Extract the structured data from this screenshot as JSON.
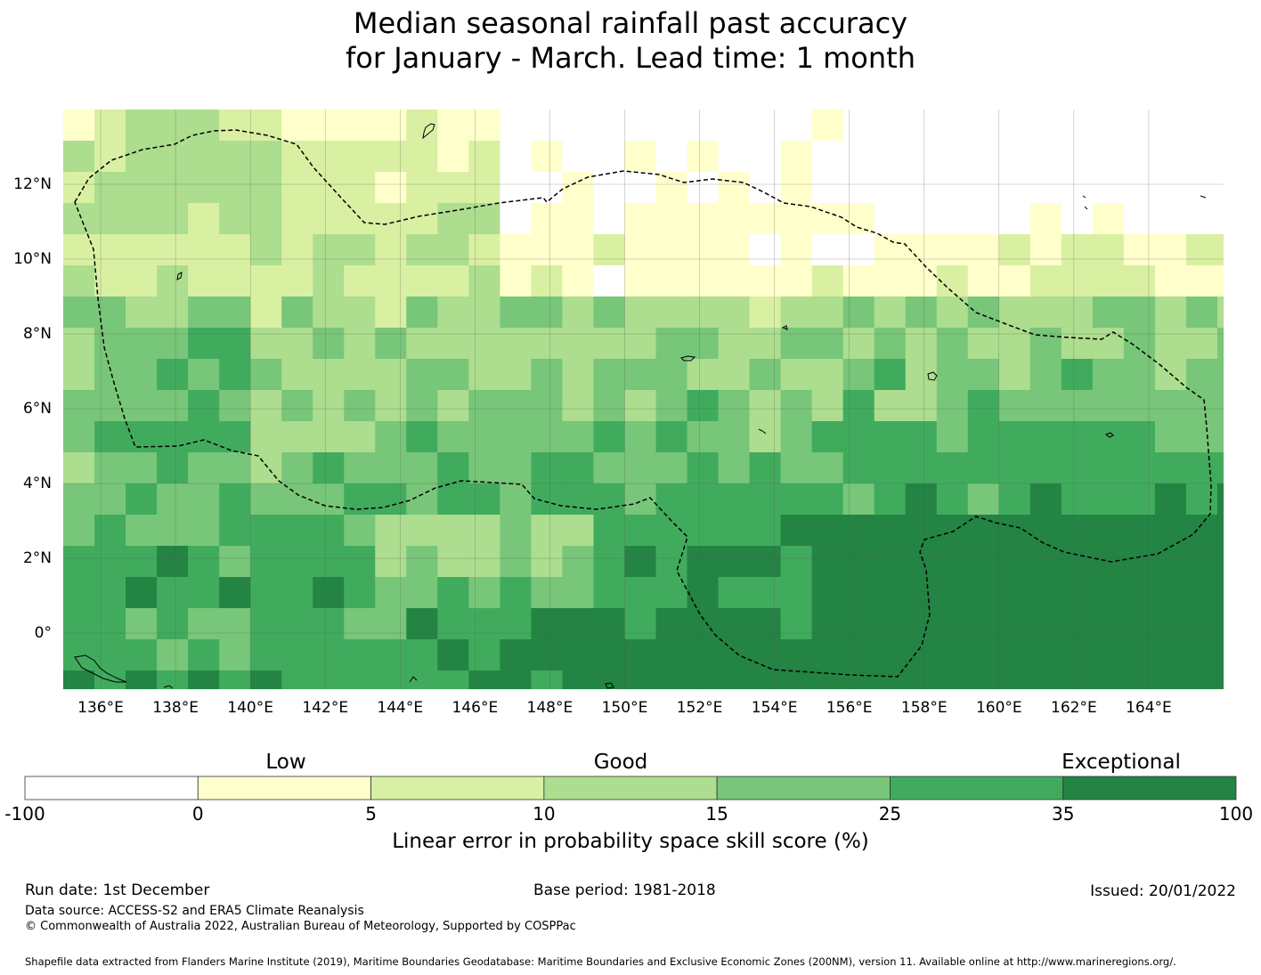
{
  "title": {
    "line1": "Median seasonal rainfall past accuracy",
    "line2": "for January - March. Lead time: 1 month"
  },
  "map": {
    "lon_range": [
      135,
      166
    ],
    "lat_range": [
      -1.5,
      14
    ],
    "x_ticks": [
      "136°E",
      "138°E",
      "140°E",
      "142°E",
      "144°E",
      "146°E",
      "148°E",
      "150°E",
      "152°E",
      "154°E",
      "156°E",
      "158°E",
      "160°E",
      "162°E",
      "164°E"
    ],
    "x_tick_values": [
      136,
      138,
      140,
      142,
      144,
      146,
      148,
      150,
      152,
      154,
      156,
      158,
      160,
      162,
      164
    ],
    "y_ticks": [
      "12°N",
      "10°N",
      "8°N",
      "6°N",
      "4°N",
      "2°N",
      "0°"
    ],
    "y_tick_values": [
      12,
      10,
      8,
      6,
      4,
      2,
      0
    ],
    "eez_boundary_name": "Federated States of Micronesia EEZ",
    "islands_name": "coastlines"
  },
  "legend": {
    "categories": [
      "Low",
      "Good",
      "Exceptional"
    ],
    "bins": [
      {
        "from": "-100",
        "to": "0",
        "color": "#ffffff"
      },
      {
        "from": "0",
        "to": "5",
        "color": "#ffffcc"
      },
      {
        "from": "5",
        "to": "10",
        "color": "#d9f0a3"
      },
      {
        "from": "10",
        "to": "15",
        "color": "#addd8e"
      },
      {
        "from": "15",
        "to": "25",
        "color": "#78c679"
      },
      {
        "from": "25",
        "to": "35",
        "color": "#41ab5d"
      },
      {
        "from": "35",
        "to": "100",
        "color": "#238443"
      }
    ],
    "tick_labels": [
      "-100",
      "0",
      "5",
      "10",
      "15",
      "25",
      "35",
      "100"
    ],
    "label": "Linear error in probability space skill score (%)"
  },
  "footer": {
    "run_date": "Run date: 1st December",
    "base_period": "Base period: 1981-2018",
    "issued": "Issued: 20/01/2022",
    "data_source": "Data source: ACCESS-S2 and ERA5 Climate Reanalysis",
    "copyright": "© Commonwealth of Australia 2022, Australian Bureau of Meteorology, Supported by COSPPac",
    "shapefile": "Shapefile data extracted from Flanders Marine Institute (2019), Maritime Boundaries Geodatabase: Maritime Boundaries and Exclusive Economic Zones (200NM), version 11. Available online at http://www.marineregions.org/."
  }
}
